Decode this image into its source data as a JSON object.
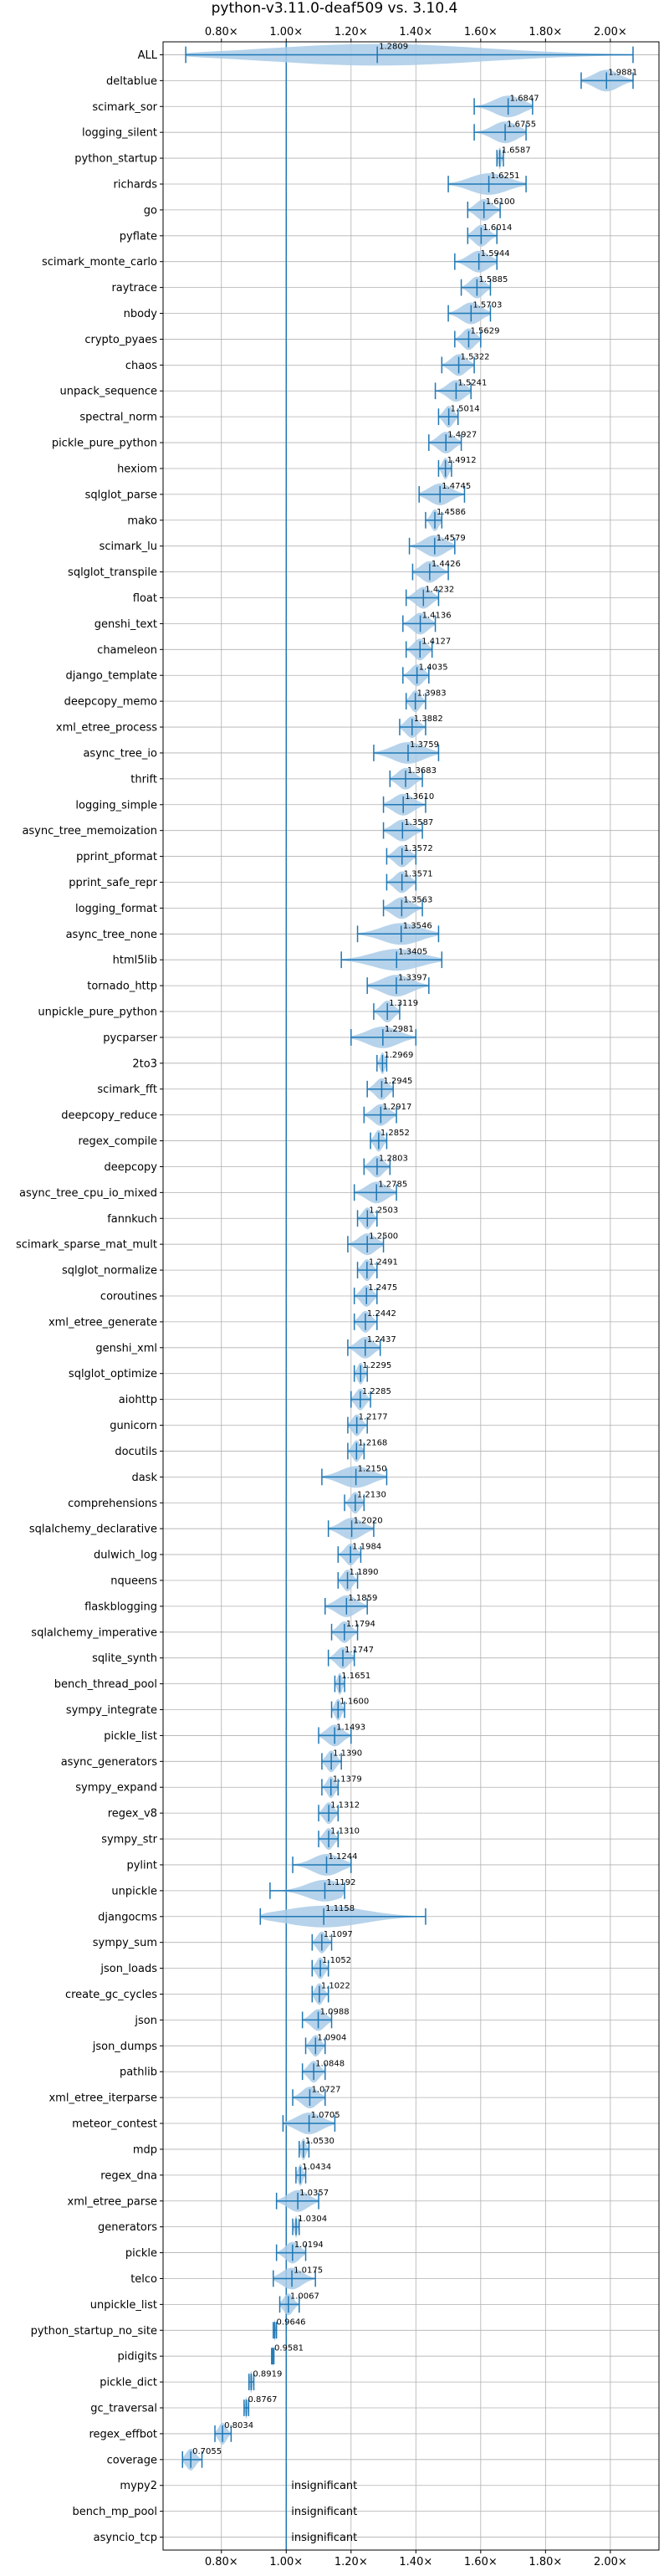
{
  "chart_data": {
    "type": "violin",
    "title": "python-v3.11.0-deaf509 vs. 3.10.4",
    "xlabel": "",
    "ylabel": "",
    "x_unit_suffix": "×",
    "xlim": [
      0.62,
      2.15
    ],
    "x_ticks": [
      0.8,
      1.0,
      1.2,
      1.4,
      1.6,
      1.8,
      2.0
    ],
    "x_tick_labels": [
      "0.80×",
      "1.00×",
      "1.20×",
      "1.40×",
      "1.60×",
      "1.80×",
      "2.00×"
    ],
    "reference_line": 1.0,
    "grid": true,
    "insignificant_label": "insignificant",
    "benchmarks": [
      {
        "name": "ALL",
        "median": 1.2809,
        "min": 0.69,
        "max": 2.07,
        "label": "1.2809"
      },
      {
        "name": "deltablue",
        "median": 1.9881,
        "min": 1.91,
        "max": 2.07,
        "label": "1.9881"
      },
      {
        "name": "scimark_sor",
        "median": 1.6847,
        "min": 1.58,
        "max": 1.76,
        "label": "1.6847"
      },
      {
        "name": "logging_silent",
        "median": 1.6755,
        "min": 1.58,
        "max": 1.74,
        "label": "1.6755"
      },
      {
        "name": "python_startup",
        "median": 1.6587,
        "min": 1.65,
        "max": 1.67,
        "label": "1.6587"
      },
      {
        "name": "richards",
        "median": 1.6251,
        "min": 1.5,
        "max": 1.74,
        "label": "1.6251"
      },
      {
        "name": "go",
        "median": 1.61,
        "min": 1.56,
        "max": 1.66,
        "label": "1.6100"
      },
      {
        "name": "pyflate",
        "median": 1.6014,
        "min": 1.56,
        "max": 1.65,
        "label": "1.6014"
      },
      {
        "name": "scimark_monte_carlo",
        "median": 1.5944,
        "min": 1.52,
        "max": 1.65,
        "label": "1.5944"
      },
      {
        "name": "raytrace",
        "median": 1.5885,
        "min": 1.54,
        "max": 1.63,
        "label": "1.5885"
      },
      {
        "name": "nbody",
        "median": 1.5703,
        "min": 1.5,
        "max": 1.63,
        "label": "1.5703"
      },
      {
        "name": "crypto_pyaes",
        "median": 1.5629,
        "min": 1.52,
        "max": 1.6,
        "label": "1.5629"
      },
      {
        "name": "chaos",
        "median": 1.5322,
        "min": 1.48,
        "max": 1.58,
        "label": "1.5322"
      },
      {
        "name": "unpack_sequence",
        "median": 1.5241,
        "min": 1.46,
        "max": 1.57,
        "label": "1.5241"
      },
      {
        "name": "spectral_norm",
        "median": 1.5014,
        "min": 1.47,
        "max": 1.53,
        "label": "1.5014"
      },
      {
        "name": "pickle_pure_python",
        "median": 1.4927,
        "min": 1.44,
        "max": 1.54,
        "label": "1.4927"
      },
      {
        "name": "hexiom",
        "median": 1.4912,
        "min": 1.47,
        "max": 1.51,
        "label": "1.4912"
      },
      {
        "name": "sqlglot_parse",
        "median": 1.4745,
        "min": 1.41,
        "max": 1.55,
        "label": "1.4745"
      },
      {
        "name": "mako",
        "median": 1.4586,
        "min": 1.43,
        "max": 1.48,
        "label": "1.4586"
      },
      {
        "name": "scimark_lu",
        "median": 1.4579,
        "min": 1.38,
        "max": 1.52,
        "label": "1.4579"
      },
      {
        "name": "sqlglot_transpile",
        "median": 1.4426,
        "min": 1.39,
        "max": 1.5,
        "label": "1.4426"
      },
      {
        "name": "float",
        "median": 1.4232,
        "min": 1.37,
        "max": 1.47,
        "label": "1.4232"
      },
      {
        "name": "genshi_text",
        "median": 1.4136,
        "min": 1.36,
        "max": 1.46,
        "label": "1.4136"
      },
      {
        "name": "chameleon",
        "median": 1.4127,
        "min": 1.37,
        "max": 1.45,
        "label": "1.4127"
      },
      {
        "name": "django_template",
        "median": 1.4035,
        "min": 1.36,
        "max": 1.44,
        "label": "1.4035"
      },
      {
        "name": "deepcopy_memo",
        "median": 1.3983,
        "min": 1.37,
        "max": 1.43,
        "label": "1.3983"
      },
      {
        "name": "xml_etree_process",
        "median": 1.3882,
        "min": 1.35,
        "max": 1.43,
        "label": "1.3882"
      },
      {
        "name": "async_tree_io",
        "median": 1.3759,
        "min": 1.27,
        "max": 1.47,
        "label": "1.3759"
      },
      {
        "name": "thrift",
        "median": 1.3683,
        "min": 1.32,
        "max": 1.42,
        "label": "1.3683"
      },
      {
        "name": "logging_simple",
        "median": 1.361,
        "min": 1.3,
        "max": 1.43,
        "label": "1.3610"
      },
      {
        "name": "async_tree_memoization",
        "median": 1.3587,
        "min": 1.3,
        "max": 1.42,
        "label": "1.3587"
      },
      {
        "name": "pprint_pformat",
        "median": 1.3572,
        "min": 1.31,
        "max": 1.4,
        "label": "1.3572"
      },
      {
        "name": "pprint_safe_repr",
        "median": 1.3571,
        "min": 1.31,
        "max": 1.4,
        "label": "1.3571"
      },
      {
        "name": "logging_format",
        "median": 1.3563,
        "min": 1.3,
        "max": 1.42,
        "label": "1.3563"
      },
      {
        "name": "async_tree_none",
        "median": 1.3546,
        "min": 1.22,
        "max": 1.47,
        "label": "1.3546"
      },
      {
        "name": "html5lib",
        "median": 1.3405,
        "min": 1.17,
        "max": 1.48,
        "label": "1.3405"
      },
      {
        "name": "tornado_http",
        "median": 1.3397,
        "min": 1.25,
        "max": 1.44,
        "label": "1.3397"
      },
      {
        "name": "unpickle_pure_python",
        "median": 1.3119,
        "min": 1.27,
        "max": 1.35,
        "label": "1.3119"
      },
      {
        "name": "pycparser",
        "median": 1.2981,
        "min": 1.2,
        "max": 1.4,
        "label": "1.2981"
      },
      {
        "name": "2to3",
        "median": 1.2969,
        "min": 1.28,
        "max": 1.31,
        "label": "1.2969"
      },
      {
        "name": "scimark_fft",
        "median": 1.2945,
        "min": 1.25,
        "max": 1.33,
        "label": "1.2945"
      },
      {
        "name": "deepcopy_reduce",
        "median": 1.2917,
        "min": 1.24,
        "max": 1.34,
        "label": "1.2917"
      },
      {
        "name": "regex_compile",
        "median": 1.2852,
        "min": 1.26,
        "max": 1.31,
        "label": "1.2852"
      },
      {
        "name": "deepcopy",
        "median": 1.2803,
        "min": 1.24,
        "max": 1.32,
        "label": "1.2803"
      },
      {
        "name": "async_tree_cpu_io_mixed",
        "median": 1.2785,
        "min": 1.21,
        "max": 1.34,
        "label": "1.2785"
      },
      {
        "name": "fannkuch",
        "median": 1.2503,
        "min": 1.22,
        "max": 1.28,
        "label": "1.2503"
      },
      {
        "name": "scimark_sparse_mat_mult",
        "median": 1.25,
        "min": 1.19,
        "max": 1.3,
        "label": "1.2500"
      },
      {
        "name": "sqlglot_normalize",
        "median": 1.2491,
        "min": 1.22,
        "max": 1.28,
        "label": "1.2491"
      },
      {
        "name": "coroutines",
        "median": 1.2475,
        "min": 1.21,
        "max": 1.28,
        "label": "1.2475"
      },
      {
        "name": "xml_etree_generate",
        "median": 1.2442,
        "min": 1.21,
        "max": 1.28,
        "label": "1.2442"
      },
      {
        "name": "genshi_xml",
        "median": 1.2437,
        "min": 1.19,
        "max": 1.29,
        "label": "1.2437"
      },
      {
        "name": "sqlglot_optimize",
        "median": 1.2295,
        "min": 1.21,
        "max": 1.25,
        "label": "1.2295"
      },
      {
        "name": "aiohttp",
        "median": 1.2285,
        "min": 1.2,
        "max": 1.26,
        "label": "1.2285"
      },
      {
        "name": "gunicorn",
        "median": 1.2177,
        "min": 1.19,
        "max": 1.25,
        "label": "1.2177"
      },
      {
        "name": "docutils",
        "median": 1.2168,
        "min": 1.19,
        "max": 1.24,
        "label": "1.2168"
      },
      {
        "name": "dask",
        "median": 1.215,
        "min": 1.11,
        "max": 1.31,
        "label": "1.2150"
      },
      {
        "name": "comprehensions",
        "median": 1.213,
        "min": 1.18,
        "max": 1.24,
        "label": "1.2130"
      },
      {
        "name": "sqlalchemy_declarative",
        "median": 1.202,
        "min": 1.13,
        "max": 1.27,
        "label": "1.2020"
      },
      {
        "name": "dulwich_log",
        "median": 1.1984,
        "min": 1.16,
        "max": 1.23,
        "label": "1.1984"
      },
      {
        "name": "nqueens",
        "median": 1.189,
        "min": 1.16,
        "max": 1.22,
        "label": "1.1890"
      },
      {
        "name": "flaskblogging",
        "median": 1.1859,
        "min": 1.12,
        "max": 1.25,
        "label": "1.1859"
      },
      {
        "name": "sqlalchemy_imperative",
        "median": 1.1794,
        "min": 1.14,
        "max": 1.22,
        "label": "1.1794"
      },
      {
        "name": "sqlite_synth",
        "median": 1.1747,
        "min": 1.13,
        "max": 1.21,
        "label": "1.1747"
      },
      {
        "name": "bench_thread_pool",
        "median": 1.1651,
        "min": 1.15,
        "max": 1.18,
        "label": "1.1651"
      },
      {
        "name": "sympy_integrate",
        "median": 1.16,
        "min": 1.14,
        "max": 1.18,
        "label": "1.1600"
      },
      {
        "name": "pickle_list",
        "median": 1.1493,
        "min": 1.1,
        "max": 1.2,
        "label": "1.1493"
      },
      {
        "name": "async_generators",
        "median": 1.139,
        "min": 1.11,
        "max": 1.17,
        "label": "1.1390"
      },
      {
        "name": "sympy_expand",
        "median": 1.1379,
        "min": 1.11,
        "max": 1.16,
        "label": "1.1379"
      },
      {
        "name": "regex_v8",
        "median": 1.1312,
        "min": 1.1,
        "max": 1.16,
        "label": "1.1312"
      },
      {
        "name": "sympy_str",
        "median": 1.131,
        "min": 1.1,
        "max": 1.16,
        "label": "1.1310"
      },
      {
        "name": "pylint",
        "median": 1.1244,
        "min": 1.02,
        "max": 1.2,
        "label": "1.1244"
      },
      {
        "name": "unpickle",
        "median": 1.1192,
        "min": 0.95,
        "max": 1.18,
        "label": "1.1192"
      },
      {
        "name": "djangocms",
        "median": 1.1158,
        "min": 0.92,
        "max": 1.43,
        "label": "1.1158"
      },
      {
        "name": "sympy_sum",
        "median": 1.1097,
        "min": 1.08,
        "max": 1.14,
        "label": "1.1097"
      },
      {
        "name": "json_loads",
        "median": 1.1052,
        "min": 1.08,
        "max": 1.13,
        "label": "1.1052"
      },
      {
        "name": "create_gc_cycles",
        "median": 1.1022,
        "min": 1.08,
        "max": 1.13,
        "label": "1.1022"
      },
      {
        "name": "json",
        "median": 1.0988,
        "min": 1.05,
        "max": 1.14,
        "label": "1.0988"
      },
      {
        "name": "json_dumps",
        "median": 1.0904,
        "min": 1.06,
        "max": 1.12,
        "label": "1.0904"
      },
      {
        "name": "pathlib",
        "median": 1.0848,
        "min": 1.05,
        "max": 1.12,
        "label": "1.0848"
      },
      {
        "name": "xml_etree_iterparse",
        "median": 1.0727,
        "min": 1.02,
        "max": 1.12,
        "label": "1.0727"
      },
      {
        "name": "meteor_contest",
        "median": 1.0705,
        "min": 0.99,
        "max": 1.15,
        "label": "1.0705"
      },
      {
        "name": "mdp",
        "median": 1.053,
        "min": 1.04,
        "max": 1.07,
        "label": "1.0530"
      },
      {
        "name": "regex_dna",
        "median": 1.0434,
        "min": 1.03,
        "max": 1.06,
        "label": "1.0434"
      },
      {
        "name": "xml_etree_parse",
        "median": 1.0357,
        "min": 0.97,
        "max": 1.1,
        "label": "1.0357"
      },
      {
        "name": "generators",
        "median": 1.0304,
        "min": 1.02,
        "max": 1.04,
        "label": "1.0304"
      },
      {
        "name": "pickle",
        "median": 1.0194,
        "min": 0.97,
        "max": 1.06,
        "label": "1.0194"
      },
      {
        "name": "telco",
        "median": 1.0175,
        "min": 0.96,
        "max": 1.09,
        "label": "1.0175"
      },
      {
        "name": "unpickle_list",
        "median": 1.0067,
        "min": 0.98,
        "max": 1.04,
        "label": "1.0067"
      },
      {
        "name": "python_startup_no_site",
        "median": 0.9646,
        "min": 0.96,
        "max": 0.97,
        "label": "0.9646"
      },
      {
        "name": "pidigits",
        "median": 0.9581,
        "min": 0.955,
        "max": 0.962,
        "label": "0.9581"
      },
      {
        "name": "pickle_dict",
        "median": 0.8919,
        "min": 0.885,
        "max": 0.9,
        "label": "0.8919"
      },
      {
        "name": "gc_traversal",
        "median": 0.8767,
        "min": 0.87,
        "max": 0.884,
        "label": "0.8767"
      },
      {
        "name": "regex_effbot",
        "median": 0.8034,
        "min": 0.78,
        "max": 0.83,
        "label": "0.8034"
      },
      {
        "name": "coverage",
        "median": 0.7055,
        "min": 0.68,
        "max": 0.74,
        "label": "0.7055"
      },
      {
        "name": "mypy2",
        "insignificant": true
      },
      {
        "name": "bench_mp_pool",
        "insignificant": true
      },
      {
        "name": "asyncio_tcp",
        "insignificant": true
      }
    ]
  },
  "colors": {
    "violin_fill": "#a9cbe8",
    "marker": "#1f77b4",
    "grid": "#b0b0b0",
    "axis": "#000000"
  }
}
